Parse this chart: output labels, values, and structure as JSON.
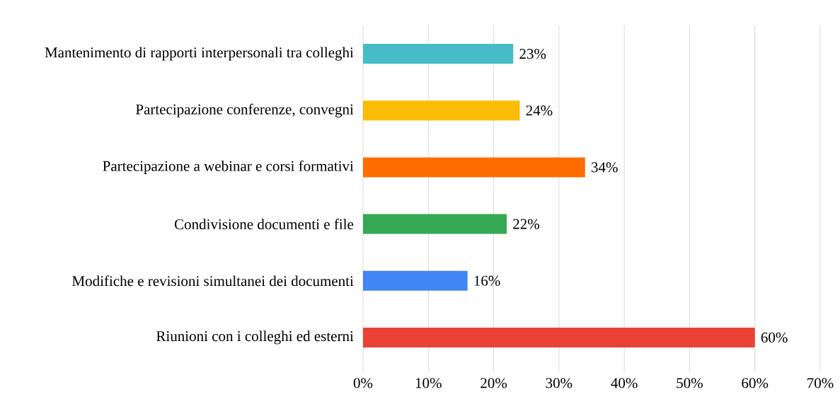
{
  "chart_data": {
    "type": "bar",
    "orientation": "horizontal",
    "categories": [
      "Mantenimento di rapporti interpersonali tra colleghi",
      "Partecipazione conferenze, convegni",
      "Partecipazione a webinar e corsi formativi",
      "Condivisione documenti e file",
      "Modifiche e revisioni simultanei dei documenti",
      "Riunioni con i colleghi ed esterni"
    ],
    "values": [
      23,
      24,
      34,
      22,
      16,
      60
    ],
    "value_labels": [
      "23%",
      "24%",
      "34%",
      "22%",
      "16%",
      "60%"
    ],
    "colors": [
      "#46bdc6",
      "#fbbc04",
      "#ff6d01",
      "#34a853",
      "#4285f4",
      "#ea4335"
    ],
    "xlim": [
      0,
      70
    ],
    "xticks": [
      {
        "value": 0,
        "label": "0%"
      },
      {
        "value": 10,
        "label": "10%"
      },
      {
        "value": 20,
        "label": "20%"
      },
      {
        "value": 30,
        "label": "30%"
      },
      {
        "value": 40,
        "label": "40%"
      },
      {
        "value": 50,
        "label": "50%"
      },
      {
        "value": 60,
        "label": "60%"
      },
      {
        "value": 70,
        "label": "70%"
      }
    ],
    "grid": "x"
  }
}
